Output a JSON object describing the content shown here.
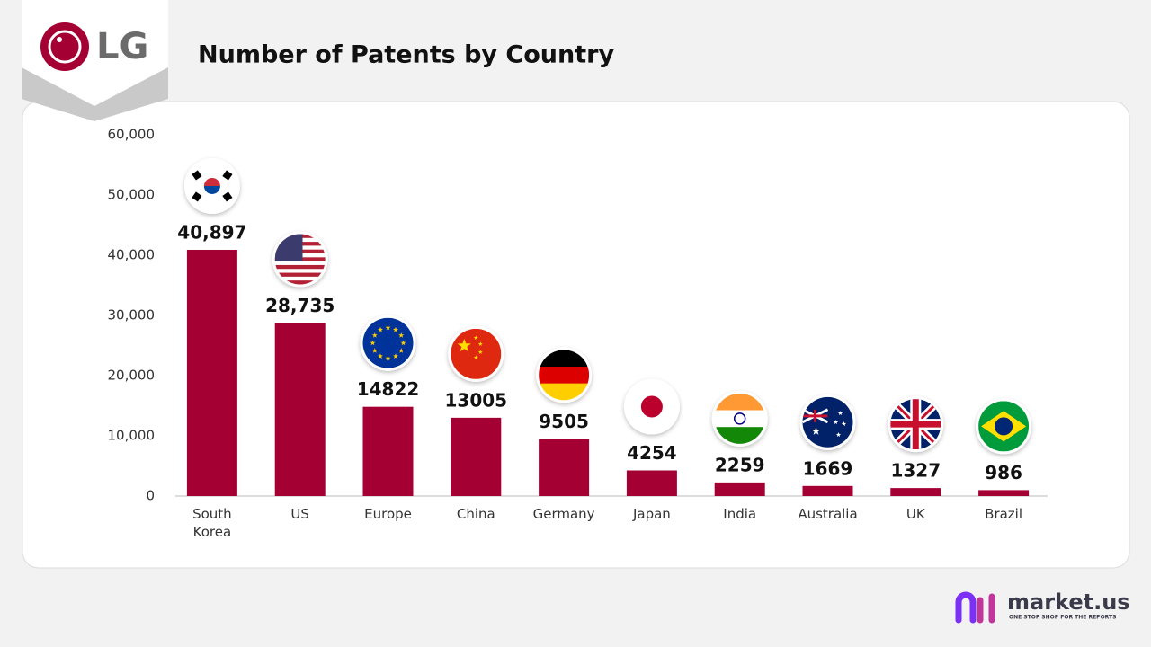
{
  "brand": {
    "logo": "LG",
    "footer_name": "market.us",
    "footer_tagline": "ONE STOP SHOP FOR THE REPORTS"
  },
  "chart_data": {
    "type": "bar",
    "title": "Number of Patents by Country",
    "categories": [
      "South Korea",
      "US",
      "Europe",
      "China",
      "Germany",
      "Japan",
      "India",
      "Australia",
      "UK",
      "Brazil"
    ],
    "values": [
      40897,
      28735,
      14822,
      13005,
      9505,
      4254,
      2259,
      1669,
      1327,
      986
    ],
    "value_labels": [
      "40,897",
      "28,735",
      "14822",
      "13005",
      "9505",
      "4254",
      "2259",
      "1669",
      "1327",
      "986"
    ],
    "color": "#a50034",
    "ylim": [
      0,
      60000
    ],
    "yticks": [
      0,
      {
        "value": 10000,
        "label": "10,000"
      },
      {
        "value": 20000,
        "label": "20,000"
      },
      {
        "value": 30000,
        "label": "30,000"
      },
      {
        "value": 40000,
        "label": "40,000"
      },
      {
        "value": 50000,
        "label": "50,000"
      },
      {
        "value": 60000,
        "label": "60,000"
      }
    ],
    "grid": false
  }
}
